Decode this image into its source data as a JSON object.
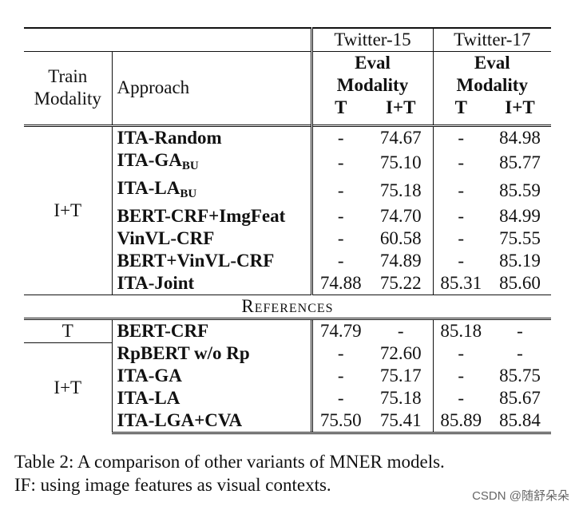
{
  "header": {
    "twitter15": "Twitter-15",
    "twitter17": "Twitter-17",
    "train_modality_1": "Train",
    "train_modality_2": "Modality",
    "approach": "Approach",
    "eval_1": "Eval",
    "eval_2": "Modality",
    "col_t": "T",
    "col_it": "I+T"
  },
  "section1": {
    "modality": "I+T",
    "rows": [
      {
        "name": "ITA-Random",
        "sub": "",
        "t15_t": "-",
        "t15_it": "74.67",
        "t17_t": "-",
        "t17_it": "84.98"
      },
      {
        "name": "ITA-GA",
        "sub": "BU",
        "t15_t": "-",
        "t15_it": "75.10",
        "t17_t": "-",
        "t17_it": "85.77"
      },
      {
        "name": "ITA-LA",
        "sub": "BU",
        "t15_t": "-",
        "t15_it": "75.18",
        "t17_t": "-",
        "t17_it": "85.59"
      },
      {
        "name": "BERT-CRF+ImgFeat",
        "sub": "",
        "t15_t": "-",
        "t15_it": "74.70",
        "t17_t": "-",
        "t17_it": "84.99"
      },
      {
        "name": "VinVL-CRF",
        "sub": "",
        "t15_t": "-",
        "t15_it": "60.58",
        "t17_t": "-",
        "t17_it": "75.55"
      },
      {
        "name": "BERT+VinVL-CRF",
        "sub": "",
        "t15_t": "-",
        "t15_it": "74.89",
        "t17_t": "-",
        "t17_it": "85.19"
      },
      {
        "name": "ITA-Joint",
        "sub": "",
        "t15_t": "74.88",
        "t15_it": "75.22",
        "t17_t": "85.31",
        "t17_it": "85.60"
      }
    ]
  },
  "references_label": "References",
  "section2": {
    "modality_t": "T",
    "modality_it": "I+T",
    "rows": [
      {
        "name": "BERT-CRF",
        "t15_t": "74.79",
        "t15_it": "-",
        "t17_t": "85.18",
        "t17_it": "-"
      },
      {
        "name": "RpBERT w/o Rp",
        "t15_t": "-",
        "t15_it": "72.60",
        "t17_t": "-",
        "t17_it": "-"
      },
      {
        "name": "ITA-GA",
        "t15_t": "-",
        "t15_it": "75.17",
        "t17_t": "-",
        "t17_it": "85.75"
      },
      {
        "name": "ITA-LA",
        "t15_t": "-",
        "t15_it": "75.18",
        "t17_t": "-",
        "t17_it": "85.67"
      },
      {
        "name": "ITA-LGA+CVA",
        "t15_t": "75.50",
        "t15_it": "75.41",
        "t17_t": "85.89",
        "t17_it": "85.84"
      }
    ]
  },
  "caption": {
    "line1": "Table 2: A comparison of other variants of MNER models.",
    "line2": "IF: using image features as visual contexts."
  },
  "watermark": "CSDN @随舒朵朵"
}
